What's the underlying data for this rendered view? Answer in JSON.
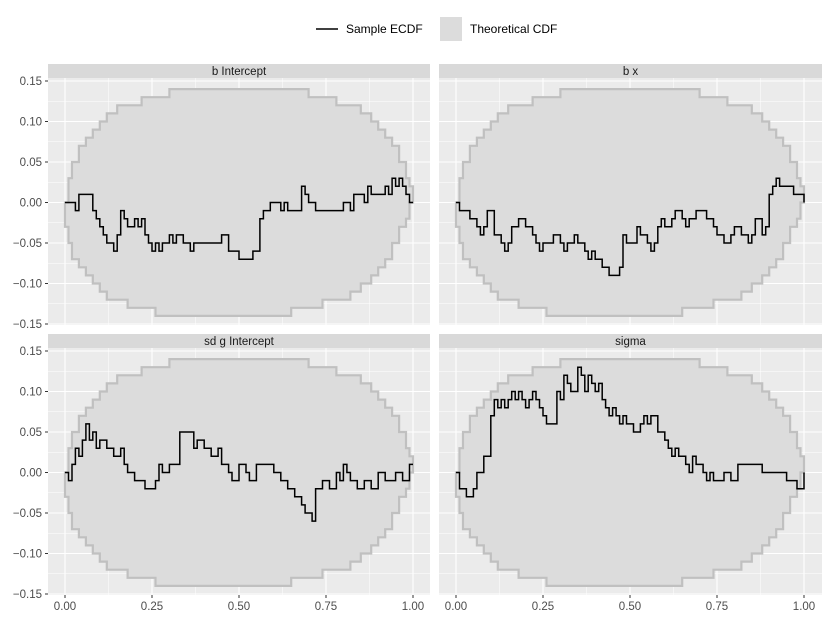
{
  "legend": {
    "items": [
      {
        "label": "Sample ECDF",
        "kind": "line"
      },
      {
        "label": "Theoretical CDF",
        "kind": "fill"
      }
    ]
  },
  "colors": {
    "panel_bg": "#ebebeb",
    "strip_bg": "#d9d9d9",
    "band_fill": "#dcdcdc",
    "band_stroke": "#c0c0c0",
    "ecdf_line": "#000000",
    "tick_text": "#4d4d4d",
    "grid": "#ffffff"
  },
  "chart_data": {
    "type": "line",
    "xlim": [
      0,
      1
    ],
    "ylim": [
      -0.15,
      0.15
    ],
    "x_ticks": [
      0,
      0.25,
      0.5,
      0.75,
      1
    ],
    "x_tick_labels": [
      "0.00",
      "0.25",
      "0.50",
      "0.75",
      "1.00"
    ],
    "y_ticks": [
      0.15,
      0.1,
      0.05,
      0.0,
      -0.05,
      -0.1,
      -0.15
    ],
    "y_tick_labels": [
      "0.15",
      "0.10",
      "0.05",
      "0.00",
      "−0.05",
      "−0.10",
      "−0.15"
    ],
    "grid": true,
    "legend_position": "top",
    "band": {
      "x": [
        0.0,
        0.01,
        0.02,
        0.04,
        0.06,
        0.08,
        0.1,
        0.12,
        0.15,
        0.18,
        0.22,
        0.26,
        0.3,
        0.35,
        0.4,
        0.45,
        0.5,
        0.55,
        0.6,
        0.65,
        0.7,
        0.74,
        0.78,
        0.82,
        0.85,
        0.88,
        0.9,
        0.92,
        0.94,
        0.96,
        0.98,
        0.99,
        1.0
      ],
      "upper": [
        0.0,
        0.03,
        0.05,
        0.07,
        0.08,
        0.09,
        0.1,
        0.11,
        0.12,
        0.12,
        0.13,
        0.13,
        0.14,
        0.14,
        0.14,
        0.14,
        0.14,
        0.14,
        0.14,
        0.14,
        0.13,
        0.13,
        0.12,
        0.12,
        0.11,
        0.1,
        0.09,
        0.08,
        0.07,
        0.05,
        0.03,
        0.02,
        0.0
      ],
      "lower": [
        0.0,
        -0.03,
        -0.05,
        -0.07,
        -0.08,
        -0.09,
        -0.1,
        -0.11,
        -0.12,
        -0.12,
        -0.13,
        -0.13,
        -0.14,
        -0.14,
        -0.14,
        -0.14,
        -0.14,
        -0.14,
        -0.14,
        -0.14,
        -0.13,
        -0.13,
        -0.12,
        -0.12,
        -0.11,
        -0.1,
        -0.09,
        -0.08,
        -0.07,
        -0.05,
        -0.03,
        -0.02,
        0.0
      ]
    },
    "panels": [
      {
        "strip": "b  Intercept",
        "series": {
          "x": [
            0.0,
            0.03,
            0.04,
            0.08,
            0.09,
            0.1,
            0.11,
            0.12,
            0.14,
            0.15,
            0.16,
            0.17,
            0.18,
            0.2,
            0.21,
            0.22,
            0.23,
            0.24,
            0.25,
            0.26,
            0.27,
            0.28,
            0.3,
            0.31,
            0.32,
            0.34,
            0.36,
            0.37,
            0.39,
            0.41,
            0.43,
            0.45,
            0.47,
            0.5,
            0.54,
            0.56,
            0.57,
            0.59,
            0.62,
            0.63,
            0.64,
            0.66,
            0.68,
            0.69,
            0.7,
            0.72,
            0.78,
            0.8,
            0.82,
            0.83,
            0.84,
            0.86,
            0.87,
            0.88,
            0.9,
            0.92,
            0.93,
            0.94,
            0.95,
            0.96,
            0.97,
            0.98,
            0.99,
            1.0
          ],
          "y": [
            0.0,
            -0.01,
            0.01,
            -0.01,
            -0.02,
            -0.03,
            -0.04,
            -0.05,
            -0.06,
            -0.04,
            -0.01,
            -0.02,
            -0.03,
            -0.02,
            -0.03,
            -0.02,
            -0.04,
            -0.05,
            -0.06,
            -0.05,
            -0.06,
            -0.05,
            -0.04,
            -0.05,
            -0.04,
            -0.05,
            -0.06,
            -0.05,
            -0.05,
            -0.05,
            -0.05,
            -0.04,
            -0.06,
            -0.07,
            -0.06,
            -0.02,
            -0.01,
            0.0,
            -0.01,
            0.0,
            -0.01,
            -0.01,
            0.02,
            0.01,
            0.0,
            -0.01,
            -0.01,
            0.0,
            -0.01,
            0.01,
            0.01,
            0.0,
            0.02,
            0.01,
            0.01,
            0.02,
            0.01,
            0.03,
            0.02,
            0.03,
            0.02,
            0.01,
            0.0,
            0.0
          ]
        }
      },
      {
        "strip": "b  x",
        "series": {
          "x": [
            0.0,
            0.01,
            0.04,
            0.06,
            0.07,
            0.08,
            0.09,
            0.11,
            0.13,
            0.14,
            0.15,
            0.16,
            0.18,
            0.2,
            0.22,
            0.23,
            0.24,
            0.25,
            0.28,
            0.3,
            0.31,
            0.32,
            0.34,
            0.35,
            0.37,
            0.38,
            0.39,
            0.4,
            0.42,
            0.44,
            0.45,
            0.47,
            0.48,
            0.49,
            0.52,
            0.53,
            0.55,
            0.56,
            0.57,
            0.58,
            0.59,
            0.6,
            0.62,
            0.63,
            0.65,
            0.66,
            0.67,
            0.69,
            0.71,
            0.72,
            0.74,
            0.75,
            0.77,
            0.79,
            0.8,
            0.82,
            0.84,
            0.85,
            0.86,
            0.88,
            0.89,
            0.9,
            0.91,
            0.92,
            0.93,
            0.95,
            0.97,
            1.0
          ],
          "y": [
            0.0,
            -0.01,
            -0.02,
            -0.03,
            -0.04,
            -0.03,
            -0.01,
            -0.04,
            -0.05,
            -0.06,
            -0.05,
            -0.03,
            -0.02,
            -0.03,
            -0.04,
            -0.05,
            -0.06,
            -0.05,
            -0.04,
            -0.05,
            -0.06,
            -0.05,
            -0.04,
            -0.05,
            -0.06,
            -0.07,
            -0.06,
            -0.07,
            -0.08,
            -0.09,
            -0.09,
            -0.08,
            -0.04,
            -0.05,
            -0.03,
            -0.04,
            -0.05,
            -0.06,
            -0.05,
            -0.03,
            -0.02,
            -0.03,
            -0.02,
            -0.01,
            -0.02,
            -0.03,
            -0.02,
            -0.01,
            -0.01,
            -0.02,
            -0.03,
            -0.04,
            -0.05,
            -0.04,
            -0.03,
            -0.04,
            -0.05,
            -0.04,
            -0.02,
            -0.04,
            -0.03,
            0.01,
            0.02,
            0.03,
            0.02,
            0.02,
            0.01,
            0.0
          ]
        }
      },
      {
        "strip": "sd  g    Intercept",
        "series": {
          "x": [
            0.0,
            0.01,
            0.02,
            0.03,
            0.04,
            0.05,
            0.06,
            0.07,
            0.08,
            0.09,
            0.1,
            0.12,
            0.14,
            0.16,
            0.17,
            0.18,
            0.2,
            0.23,
            0.26,
            0.27,
            0.28,
            0.3,
            0.33,
            0.37,
            0.38,
            0.4,
            0.42,
            0.44,
            0.45,
            0.47,
            0.48,
            0.5,
            0.52,
            0.53,
            0.55,
            0.58,
            0.6,
            0.62,
            0.64,
            0.66,
            0.68,
            0.69,
            0.71,
            0.72,
            0.74,
            0.76,
            0.78,
            0.79,
            0.8,
            0.81,
            0.82,
            0.83,
            0.84,
            0.86,
            0.88,
            0.9,
            0.92,
            0.95,
            0.97,
            0.99,
            1.0
          ],
          "y": [
            0.0,
            -0.01,
            0.01,
            0.03,
            0.02,
            0.04,
            0.06,
            0.04,
            0.05,
            0.03,
            0.04,
            0.03,
            0.02,
            0.03,
            0.01,
            0.0,
            -0.01,
            -0.02,
            -0.01,
            0.01,
            0.0,
            0.01,
            0.05,
            0.03,
            0.04,
            0.03,
            0.02,
            0.03,
            0.01,
            0.0,
            -0.01,
            0.01,
            0.0,
            -0.01,
            0.01,
            0.01,
            0.0,
            -0.01,
            -0.02,
            -0.03,
            -0.04,
            -0.05,
            -0.06,
            -0.02,
            -0.01,
            -0.02,
            0.0,
            -0.01,
            0.01,
            0.0,
            -0.01,
            -0.01,
            -0.02,
            -0.01,
            -0.02,
            0.0,
            -0.01,
            0.0,
            -0.01,
            0.01,
            0.01
          ]
        }
      },
      {
        "strip": "sigma",
        "series": {
          "x": [
            0.0,
            0.01,
            0.03,
            0.05,
            0.06,
            0.08,
            0.1,
            0.11,
            0.12,
            0.13,
            0.14,
            0.15,
            0.16,
            0.17,
            0.18,
            0.19,
            0.2,
            0.21,
            0.22,
            0.23,
            0.24,
            0.25,
            0.26,
            0.27,
            0.29,
            0.3,
            0.31,
            0.32,
            0.33,
            0.35,
            0.36,
            0.37,
            0.38,
            0.39,
            0.4,
            0.41,
            0.42,
            0.43,
            0.44,
            0.45,
            0.46,
            0.47,
            0.48,
            0.49,
            0.51,
            0.53,
            0.54,
            0.55,
            0.56,
            0.58,
            0.6,
            0.61,
            0.62,
            0.63,
            0.64,
            0.66,
            0.67,
            0.68,
            0.69,
            0.71,
            0.72,
            0.73,
            0.74,
            0.76,
            0.77,
            0.79,
            0.81,
            0.83,
            0.88,
            0.95,
            0.98,
            1.0
          ],
          "y": [
            0.0,
            -0.02,
            -0.03,
            -0.02,
            0.0,
            0.02,
            0.07,
            0.09,
            0.08,
            0.09,
            0.08,
            0.09,
            0.1,
            0.09,
            0.1,
            0.09,
            0.08,
            0.09,
            0.1,
            0.09,
            0.08,
            0.07,
            0.06,
            0.06,
            0.1,
            0.09,
            0.12,
            0.11,
            0.1,
            0.13,
            0.12,
            0.1,
            0.12,
            0.11,
            0.1,
            0.11,
            0.09,
            0.08,
            0.07,
            0.08,
            0.07,
            0.06,
            0.07,
            0.06,
            0.05,
            0.06,
            0.07,
            0.06,
            0.07,
            0.05,
            0.04,
            0.03,
            0.02,
            0.03,
            0.02,
            0.01,
            0.0,
            0.02,
            0.01,
            0.0,
            -0.01,
            0.0,
            -0.01,
            -0.01,
            0.0,
            -0.01,
            0.01,
            0.01,
            0.0,
            -0.01,
            -0.02,
            0.0
          ]
        }
      }
    ]
  }
}
